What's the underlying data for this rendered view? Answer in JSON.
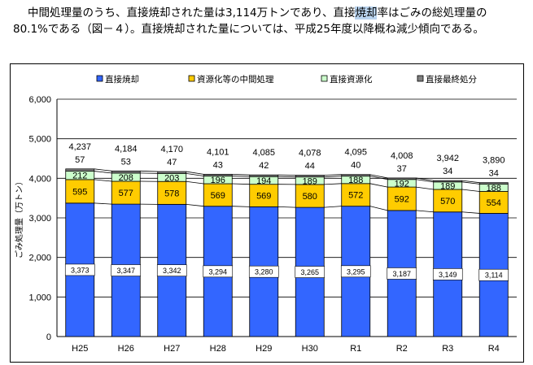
{
  "intro": {
    "line1_a": "中間処理量のうち、直接焼却された量は3,114万トンであり、直接",
    "line1_hl": "焼却",
    "line1_b": "率はごみの総処理量の",
    "line2": "80.1%である（図－４）。直接焼却された量については、平成25年度以降概ね減少傾向である。"
  },
  "chart_data": {
    "type": "bar",
    "stacked": true,
    "categories": [
      "H25",
      "H26",
      "H27",
      "H28",
      "H29",
      "H30",
      "R1",
      "R2",
      "R3",
      "R4"
    ],
    "series": [
      {
        "name": "直接焼却",
        "color": "#3366ff",
        "values": [
          3373,
          3347,
          3342,
          3294,
          3280,
          3265,
          3295,
          3187,
          3149,
          3114
        ]
      },
      {
        "name": "資源化等の中間処理",
        "color": "#ffcc00",
        "values": [
          595,
          577,
          578,
          569,
          569,
          580,
          572,
          592,
          570,
          554
        ]
      },
      {
        "name": "直接資源化",
        "color": "#ccffcc",
        "values": [
          212,
          208,
          203,
          196,
          194,
          189,
          188,
          192,
          189,
          188
        ]
      },
      {
        "name": "直接最終処分",
        "color": "#808080",
        "values": [
          57,
          53,
          47,
          43,
          42,
          44,
          40,
          37,
          34,
          34
        ]
      }
    ],
    "totals": [
      "4,237",
      "4,184",
      "4,170",
      "4,101",
      "4,085",
      "4,078",
      "4,095",
      "4,008",
      "3,942",
      "3,890"
    ],
    "labels": {
      "s0": [
        "3,373",
        "3,347",
        "3,342",
        "3,294",
        "3,280",
        "3,265",
        "3,295",
        "3,187",
        "3,149",
        "3,114"
      ],
      "s1": [
        "595",
        "577",
        "578",
        "569",
        "569",
        "580",
        "572",
        "592",
        "570",
        "554"
      ],
      "s2": [
        "212",
        "208",
        "203",
        "196",
        "194",
        "189",
        "188",
        "192",
        "189",
        "188"
      ],
      "s3": [
        "57",
        "53",
        "47",
        "43",
        "42",
        "44",
        "40",
        "37",
        "34",
        "34"
      ]
    },
    "ylabel": "ごみ処理量（万トン）",
    "ylim": [
      0,
      6000
    ],
    "yticks": [
      0,
      1000,
      2000,
      3000,
      4000,
      5000,
      6000
    ],
    "ytick_labels": [
      "0",
      "1,000",
      "2,000",
      "3,000",
      "4,000",
      "5,000",
      "6,000"
    ],
    "grid": true,
    "legend_position": "top"
  }
}
